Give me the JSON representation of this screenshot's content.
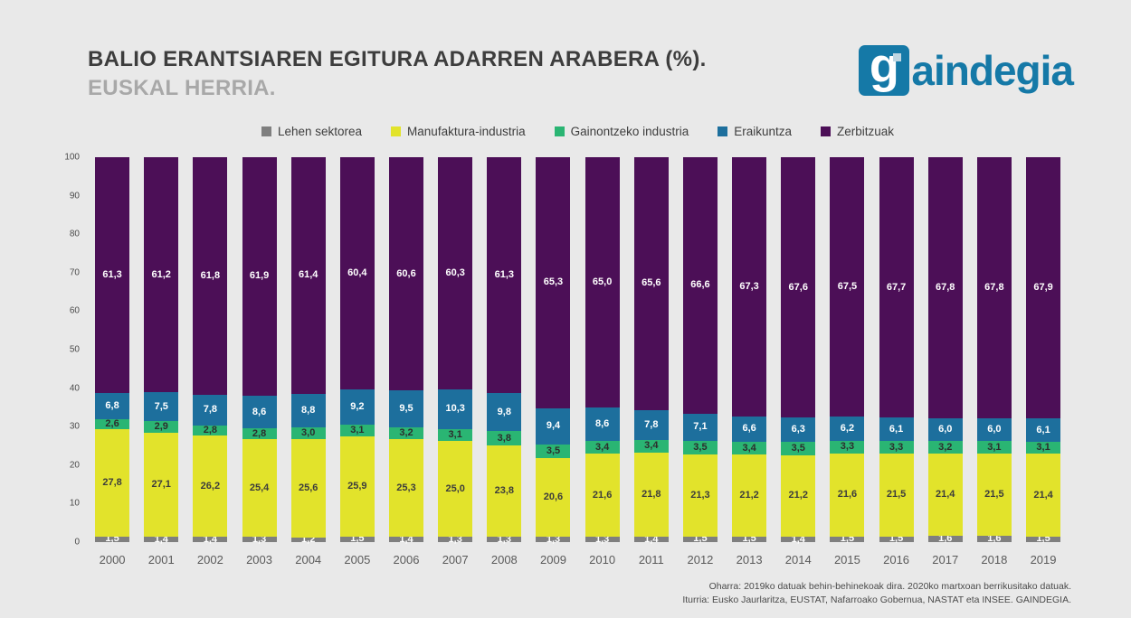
{
  "header": {
    "title": "BALIO ERANTSIAREN EGITURA ADARREN ARABERA (%).",
    "subtitle": "EUSKAL HERRIA."
  },
  "logo": {
    "icon_letter": "g",
    "text": "aindegia",
    "color": "#1579a7"
  },
  "footer": {
    "note": "Oharra: 2019ko datuak behin-behinekoak dira. 2020ko martxoan berrikusitako datuak.",
    "source": "Iturria: Eusko Jaurlaritza, EUSTAT, Nafarroako Gobernua, NASTAT eta INSEE. GAINDEGIA."
  },
  "chart_data": {
    "type": "bar",
    "stacked": true,
    "percent": true,
    "title": "BALIO ERANTSIAREN EGITURA ADARREN ARABERA (%). EUSKAL HERRIA.",
    "xlabel": "",
    "ylabel": "",
    "ylim": [
      0,
      100
    ],
    "yticks": [
      0,
      10,
      20,
      30,
      40,
      50,
      60,
      70,
      80,
      90,
      100
    ],
    "legend_position": "top",
    "grid": false,
    "decimal_separator": ",",
    "categories": [
      "2000",
      "2001",
      "2002",
      "2003",
      "2004",
      "2005",
      "2006",
      "2007",
      "2008",
      "2009",
      "2010",
      "2011",
      "2012",
      "2013",
      "2014",
      "2015",
      "2016",
      "2017",
      "2018",
      "2019"
    ],
    "series": [
      {
        "name": "Lehen sektorea",
        "color": "#7f7f7f",
        "label_color": "#ffffff",
        "values": [
          1.5,
          1.4,
          1.4,
          1.3,
          1.2,
          1.5,
          1.4,
          1.3,
          1.3,
          1.3,
          1.3,
          1.4,
          1.5,
          1.5,
          1.4,
          1.5,
          1.5,
          1.6,
          1.6,
          1.5
        ]
      },
      {
        "name": "Manufaktura-industria",
        "color": "#e2e32b",
        "label_color": "#3c3c3c",
        "values": [
          27.8,
          27.1,
          26.2,
          25.4,
          25.6,
          25.9,
          25.3,
          25.0,
          23.8,
          20.6,
          21.6,
          21.8,
          21.3,
          21.2,
          21.2,
          21.6,
          21.5,
          21.4,
          21.5,
          21.4
        ]
      },
      {
        "name": "Gainontzeko industria",
        "color": "#2ab573",
        "label_color": "#2d2d2d",
        "values": [
          2.6,
          2.9,
          2.8,
          2.8,
          3.0,
          3.1,
          3.2,
          3.1,
          3.8,
          3.5,
          3.4,
          3.4,
          3.5,
          3.4,
          3.5,
          3.3,
          3.3,
          3.2,
          3.1,
          3.1
        ]
      },
      {
        "name": "Eraikuntza",
        "color": "#1d6f9d",
        "label_color": "#ffffff",
        "values": [
          6.8,
          7.5,
          7.8,
          8.6,
          8.8,
          9.2,
          9.5,
          10.3,
          9.8,
          9.4,
          8.6,
          7.8,
          7.1,
          6.6,
          6.3,
          6.2,
          6.1,
          6.0,
          6.0,
          6.1
        ]
      },
      {
        "name": "Zerbitzuak",
        "color": "#4c0f57",
        "label_color": "#ffffff",
        "values": [
          61.3,
          61.2,
          61.8,
          61.9,
          61.4,
          60.4,
          60.6,
          60.3,
          61.3,
          65.3,
          65.0,
          65.6,
          66.6,
          67.3,
          67.6,
          67.5,
          67.7,
          67.8,
          67.8,
          67.9
        ]
      }
    ]
  }
}
